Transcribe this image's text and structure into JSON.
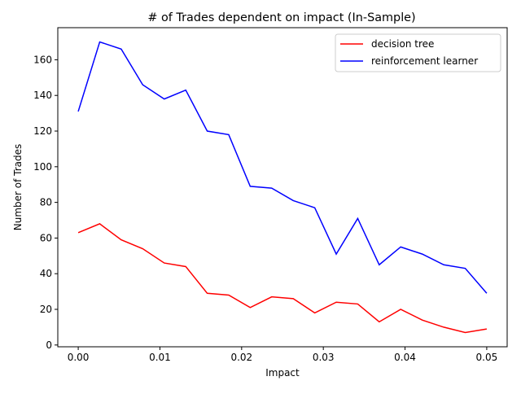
{
  "chart_data": {
    "type": "line",
    "title": "# of Trades dependent on impact (In-Sample)",
    "xlabel": "Impact",
    "ylabel": "Number of Trades",
    "xlim": [
      -0.0025,
      0.0525
    ],
    "ylim": [
      -1,
      178
    ],
    "xticks": [
      0.0,
      0.01,
      0.02,
      0.03,
      0.04,
      0.05
    ],
    "xtick_labels": [
      "0.00",
      "0.01",
      "0.02",
      "0.03",
      "0.04",
      "0.05"
    ],
    "yticks": [
      0,
      20,
      40,
      60,
      80,
      100,
      120,
      140,
      160
    ],
    "ytick_labels": [
      "0",
      "20",
      "40",
      "60",
      "80",
      "100",
      "120",
      "140",
      "160"
    ],
    "grid": false,
    "legend_position": "top-right",
    "x": [
      0.0,
      0.00263,
      0.00526,
      0.00789,
      0.01053,
      0.01316,
      0.01579,
      0.01842,
      0.02105,
      0.02368,
      0.02632,
      0.02895,
      0.03158,
      0.03421,
      0.03684,
      0.03947,
      0.04211,
      0.04474,
      0.04737,
      0.05
    ],
    "series": [
      {
        "name": "decision tree",
        "color": "#ff0000",
        "values": [
          63,
          68,
          59,
          54,
          46,
          44,
          29,
          28,
          21,
          27,
          26,
          18,
          24,
          23,
          13,
          20,
          14,
          10,
          7,
          9
        ]
      },
      {
        "name": "reinforcement learner",
        "color": "#0000ff",
        "values": [
          131,
          170,
          166,
          146,
          138,
          143,
          120,
          118,
          89,
          88,
          81,
          77,
          51,
          71,
          45,
          55,
          51,
          45,
          43,
          29
        ]
      }
    ]
  }
}
